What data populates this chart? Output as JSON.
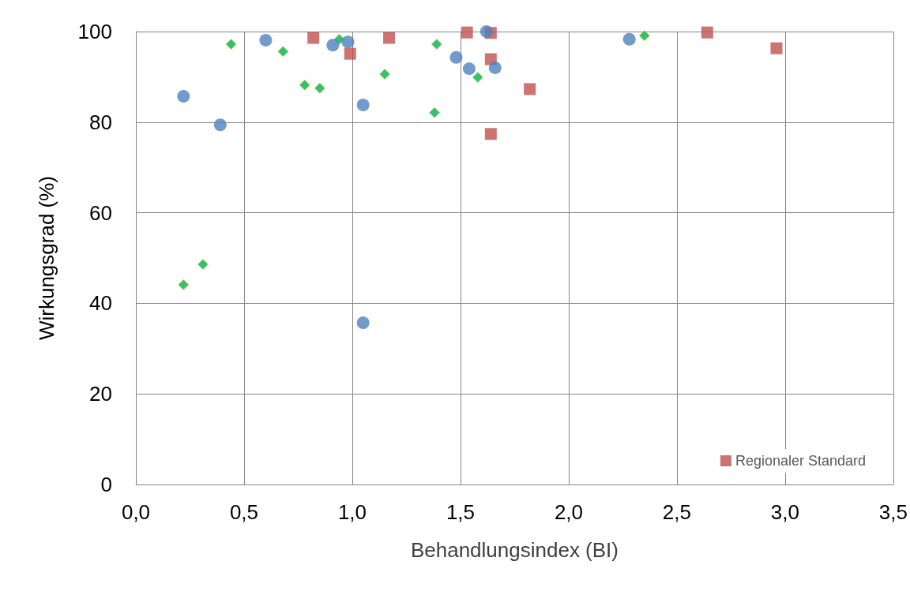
{
  "chart_data": {
    "type": "scatter",
    "xlabel": "Behandlungsindex (BI)",
    "ylabel": "Wirkungsgrad (%)",
    "xlim": [
      0,
      3.5
    ],
    "xticks": [
      {
        "value": 0,
        "label": "0,0"
      },
      {
        "value": 0.5,
        "label": "0,5"
      },
      {
        "value": 1,
        "label": "1,0"
      },
      {
        "value": 1.5,
        "label": "1,5"
      },
      {
        "value": 2,
        "label": "2,0"
      },
      {
        "value": 2.5,
        "label": "2,5"
      },
      {
        "value": 3,
        "label": "3,0"
      },
      {
        "value": 3.5,
        "label": "3,5"
      }
    ],
    "ylim": [
      0,
      100
    ],
    "yticks": [
      0,
      20,
      40,
      60,
      80,
      100
    ],
    "grid": true,
    "legend": "bottom right",
    "series": [
      {
        "color": "#4f81bd",
        "marker": "circle",
        "x": [
          0.22,
          0.39,
          0.6,
          0.91,
          0.98,
          1.05,
          1.05,
          1.48,
          1.54,
          1.62,
          1.66,
          2.28
        ],
        "values": [
          85.7,
          79.4,
          98.1,
          97.0,
          97.7,
          83.8,
          35.7,
          94.3,
          91.8,
          100,
          92.0,
          98.3
        ]
      },
      {
        "color": "#00b050",
        "marker": "diamond",
        "x": [
          0.22,
          0.31,
          0.44,
          0.68,
          0.78,
          0.85,
          0.94,
          1.15,
          1.38,
          1.39,
          1.58,
          2.35
        ],
        "values": [
          44.1,
          48.6,
          97.2,
          95.6,
          88.2,
          87.5,
          98.3,
          90.6,
          82.1,
          97.2,
          89.9,
          99.1
        ]
      },
      {
        "name": "Regionaler Standard",
        "color": "#c0504d",
        "marker": "square",
        "x": [
          0.82,
          0.99,
          1.17,
          1.53,
          1.64,
          1.64,
          1.64,
          1.82,
          2.64,
          2.96
        ],
        "values": [
          98.6,
          95.1,
          98.6,
          99.8,
          99.7,
          93.9,
          77.4,
          87.3,
          99.8,
          96.3
        ]
      }
    ]
  }
}
